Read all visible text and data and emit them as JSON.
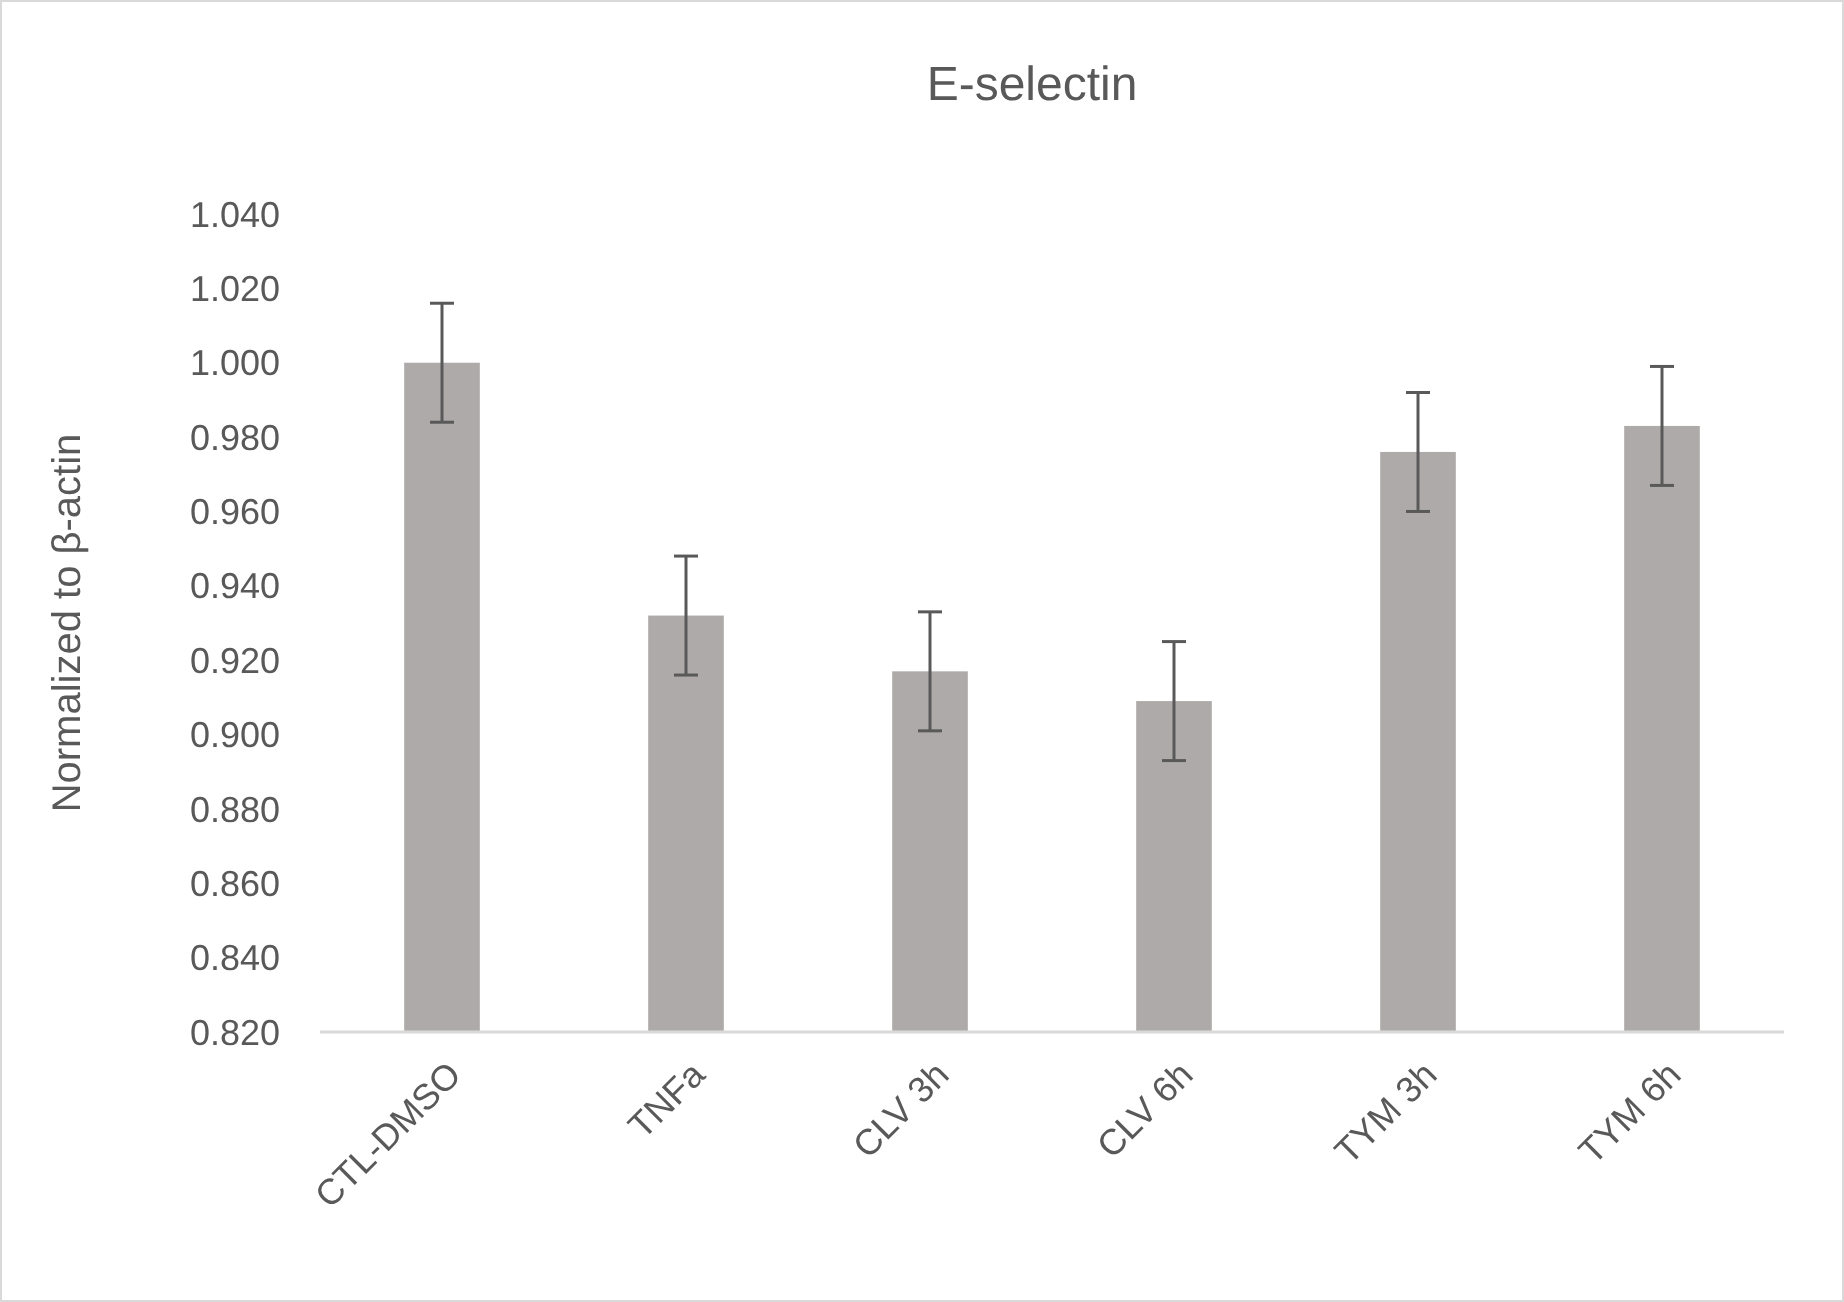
{
  "chart_data": {
    "type": "bar",
    "title": "E-selectin",
    "ylabel": "Normalized to β-actin",
    "categories": [
      "CTL-DMSO",
      "TNFa",
      "CLV 3h",
      "CLV 6h",
      "TYM 3h",
      "TYM 6h"
    ],
    "values": [
      1.0,
      0.932,
      0.917,
      0.909,
      0.976,
      0.983
    ],
    "errors": [
      0.016,
      0.016,
      0.016,
      0.016,
      0.016,
      0.016
    ],
    "color": "#aeaaaa",
    "ylim": [
      0.82,
      1.04
    ],
    "yticks": [
      {
        "value": 0.82,
        "label": "0.820"
      },
      {
        "value": 0.84,
        "label": "0.840"
      },
      {
        "value": 0.86,
        "label": "0.860"
      },
      {
        "value": 0.88,
        "label": "0.880"
      },
      {
        "value": 0.9,
        "label": "0.900"
      },
      {
        "value": 0.92,
        "label": "0.920"
      },
      {
        "value": 0.94,
        "label": "0.940"
      },
      {
        "value": 0.96,
        "label": "0.960"
      },
      {
        "value": 0.98,
        "label": "0.980"
      },
      {
        "value": 1.0,
        "label": "1.000"
      },
      {
        "value": 1.02,
        "label": "1.020"
      },
      {
        "value": 1.04,
        "label": "1.040"
      }
    ],
    "grid": false
  }
}
